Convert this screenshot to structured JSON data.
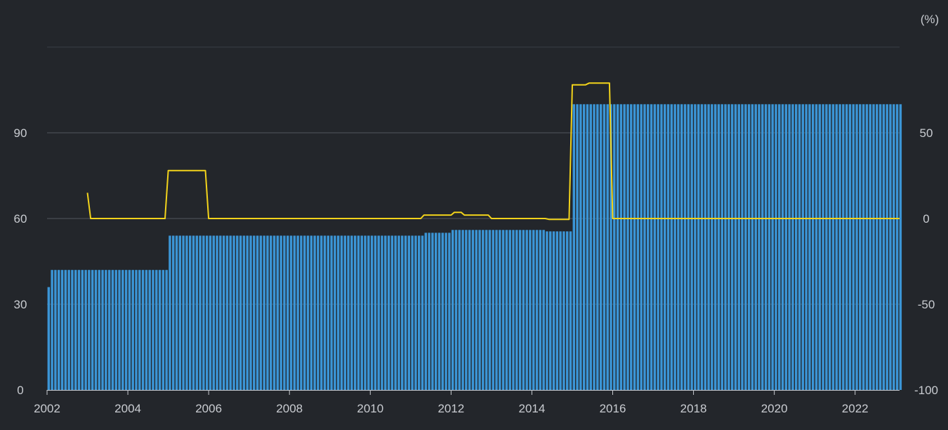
{
  "chart_data": {
    "type": "bar",
    "right_axis_unit": "(%)",
    "x_ticks": [
      "2002",
      "2004",
      "2006",
      "2008",
      "2010",
      "2012",
      "2014",
      "2016",
      "2018",
      "2020",
      "2022"
    ],
    "x_range": [
      2002,
      2023.1
    ],
    "y_left": {
      "ticks": [
        "0",
        "30",
        "60",
        "90"
      ],
      "range": [
        0,
        120
      ]
    },
    "y_right": {
      "ticks": [
        "-100",
        "-50",
        "0",
        "50"
      ],
      "range": [
        -100,
        100
      ]
    },
    "grid": true,
    "colors": {
      "background": "#23262b",
      "bars": "#3b95d6",
      "line": "#f2d31b",
      "grid": "#3a3e44",
      "text": "#c9ccd1"
    },
    "series": [
      {
        "type": "bar",
        "axis": "left",
        "frequency": "monthly",
        "segments": [
          {
            "from": "2002-01",
            "to": "2002-01",
            "value": 36
          },
          {
            "from": "2002-02",
            "to": "2004-12",
            "value": 42
          },
          {
            "from": "2005-01",
            "to": "2011-04",
            "value": 54
          },
          {
            "from": "2011-05",
            "to": "2011-12",
            "value": 55
          },
          {
            "from": "2012-01",
            "to": "2014-04",
            "value": 56
          },
          {
            "from": "2014-05",
            "to": "2014-12",
            "value": 55.5
          },
          {
            "from": "2015-01",
            "to": "2023-02",
            "value": 100
          }
        ]
      },
      {
        "type": "line",
        "axis": "right",
        "points": [
          [
            2003.0,
            15
          ],
          [
            2003.08,
            0
          ],
          [
            2004.92,
            0
          ],
          [
            2005.0,
            28
          ],
          [
            2005.92,
            28
          ],
          [
            2006.0,
            0
          ],
          [
            2011.25,
            0
          ],
          [
            2011.33,
            2
          ],
          [
            2012.0,
            2
          ],
          [
            2012.08,
            3.6
          ],
          [
            2012.25,
            3.6
          ],
          [
            2012.33,
            2
          ],
          [
            2012.92,
            2
          ],
          [
            2013.0,
            0
          ],
          [
            2014.33,
            0
          ],
          [
            2014.42,
            -0.5
          ],
          [
            2014.92,
            -0.5
          ],
          [
            2015.0,
            78
          ],
          [
            2015.33,
            78
          ],
          [
            2015.42,
            79
          ],
          [
            2015.92,
            79
          ],
          [
            2016.0,
            0
          ],
          [
            2023.1,
            0
          ]
        ]
      }
    ]
  }
}
